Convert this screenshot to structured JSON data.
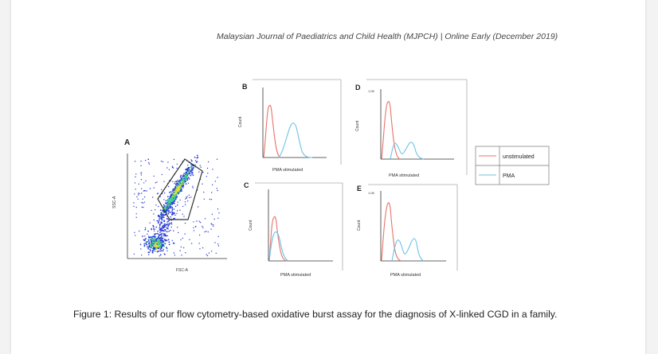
{
  "header": {
    "running_title": "Malaysian Journal of Paediatrics and Child Health (MJPCH) | Online Early (December 2019)"
  },
  "figure": {
    "caption": "Figure 1: Results of our flow cytometry-based oxidative burst assay for the diagnosis of X-linked CGD in a family.",
    "panel_a": {
      "letter": "A",
      "xlabel": "FSC-A",
      "ylabel": "SSC-A"
    },
    "panels": [
      {
        "letter": "B",
        "xlabel": "PMA stimulated",
        "ylabel": "Count",
        "top_label": ""
      },
      {
        "letter": "C",
        "xlabel": "PMA stimulated",
        "ylabel": "Count",
        "top_label": ""
      },
      {
        "letter": "D",
        "xlabel": "PMA stimulated",
        "ylabel": "Count",
        "top_label": "1.0K"
      },
      {
        "letter": "E",
        "xlabel": "PMA stimulated",
        "ylabel": "Count",
        "top_label": "1.0K"
      }
    ],
    "legend": {
      "items": [
        {
          "label": "unstimulated",
          "color": "#e8736a"
        },
        {
          "label": "PMA",
          "color": "#6ec3e6"
        }
      ]
    },
    "colors": {
      "unstimulated": "#e8736a",
      "pma": "#6ec3e6",
      "gate": "#333333",
      "density_low": "#2a3bd6",
      "density_mid": "#3fd38a",
      "density_high": "#e8e030"
    }
  }
}
